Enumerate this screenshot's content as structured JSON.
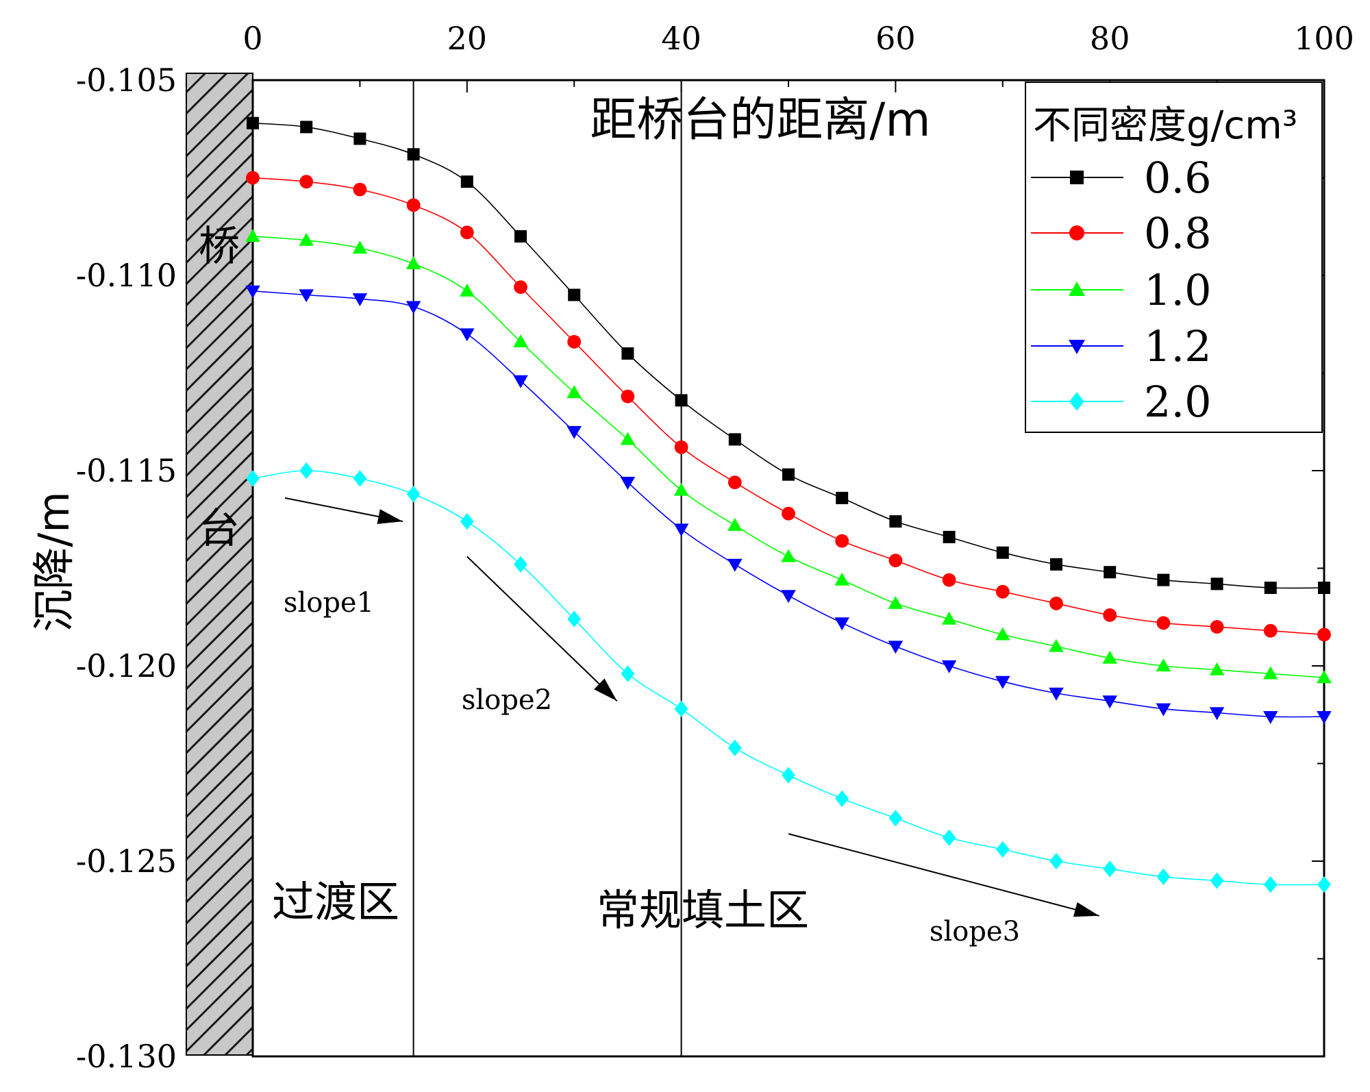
{
  "chart_data": {
    "type": "line",
    "title": "距桥台的距离/m",
    "xlabel": "距桥台的距离/m",
    "ylabel": "沉降/m",
    "xlim": [
      0,
      100
    ],
    "ylim": [
      -0.13,
      -0.105
    ],
    "x_ticks": [
      "0",
      "20",
      "40",
      "60",
      "80",
      "100"
    ],
    "y_ticks": [
      "-0.105",
      "-0.110",
      "-0.115",
      "-0.120",
      "-0.125",
      "-0.130"
    ],
    "x_tick_values": [
      0,
      20,
      40,
      60,
      80,
      100
    ],
    "y_tick_values": [
      -0.105,
      -0.11,
      -0.115,
      -0.12,
      -0.125,
      -0.13
    ],
    "legend_title": "不同密度g/cm³",
    "legend_position": "top-right",
    "x": [
      0,
      5,
      10,
      15,
      20,
      25,
      30,
      35,
      40,
      45,
      50,
      55,
      60,
      65,
      70,
      75,
      80,
      85,
      90,
      95,
      100
    ],
    "series": [
      {
        "name": "0.6",
        "color": "#000000",
        "marker": "square",
        "values": [
          -0.1061,
          -0.1062,
          -0.1065,
          -0.1069,
          -0.1076,
          -0.109,
          -0.1105,
          -0.112,
          -0.1132,
          -0.1142,
          -0.1151,
          -0.1157,
          -0.1163,
          -0.1167,
          -0.1171,
          -0.1174,
          -0.1176,
          -0.1178,
          -0.1179,
          -0.118,
          -0.118
        ]
      },
      {
        "name": "0.8",
        "color": "#ff0000",
        "marker": "circle",
        "values": [
          -0.1075,
          -0.1076,
          -0.1078,
          -0.1082,
          -0.1089,
          -0.1103,
          -0.1117,
          -0.1131,
          -0.1144,
          -0.1153,
          -0.1161,
          -0.1168,
          -0.1173,
          -0.1178,
          -0.1181,
          -0.1184,
          -0.1187,
          -0.1189,
          -0.119,
          -0.1191,
          -0.1192
        ]
      },
      {
        "name": "1.0",
        "color": "#00ff00",
        "marker": "triangle-up",
        "values": [
          -0.109,
          -0.1091,
          -0.1093,
          -0.1097,
          -0.1104,
          -0.1117,
          -0.113,
          -0.1142,
          -0.1155,
          -0.1164,
          -0.1172,
          -0.1178,
          -0.1184,
          -0.1188,
          -0.1192,
          -0.1195,
          -0.1198,
          -0.12,
          -0.1201,
          -0.1202,
          -0.1203
        ]
      },
      {
        "name": "1.2",
        "color": "#0000ff",
        "marker": "triangle-down",
        "values": [
          -0.1104,
          -0.1105,
          -0.1106,
          -0.1108,
          -0.1115,
          -0.1127,
          -0.114,
          -0.1153,
          -0.1165,
          -0.1174,
          -0.1182,
          -0.1189,
          -0.1195,
          -0.12,
          -0.1204,
          -0.1207,
          -0.1209,
          -0.1211,
          -0.1212,
          -0.1213,
          -0.1213
        ]
      },
      {
        "name": "2.0",
        "color": "#00ffff",
        "marker": "diamond",
        "values": [
          -0.1152,
          -0.115,
          -0.1152,
          -0.1156,
          -0.1163,
          -0.1174,
          -0.1188,
          -0.1202,
          -0.1211,
          -0.1221,
          -0.1228,
          -0.1234,
          -0.1239,
          -0.1244,
          -0.1247,
          -0.125,
          -0.1252,
          -0.1254,
          -0.1255,
          -0.1256,
          -0.1256
        ]
      }
    ],
    "vertical_lines": [
      15,
      40
    ],
    "annotations": {
      "abutment_char_1": "桥",
      "abutment_char_2": "台",
      "zone_transition": "过渡区",
      "zone_fill": "常规填土区",
      "slope1": "slope1",
      "slope2": "slope2",
      "slope3": "slope3"
    },
    "arrows": [
      {
        "label": "slope1",
        "from": [
          3,
          -0.1157
        ],
        "to": [
          14,
          -0.1163
        ]
      },
      {
        "label": "slope2",
        "from": [
          20,
          -0.1172
        ],
        "to": [
          34,
          -0.1209
        ]
      },
      {
        "label": "slope3",
        "from": [
          50,
          -0.1243
        ],
        "to": [
          79,
          -0.1264
        ]
      }
    ]
  }
}
